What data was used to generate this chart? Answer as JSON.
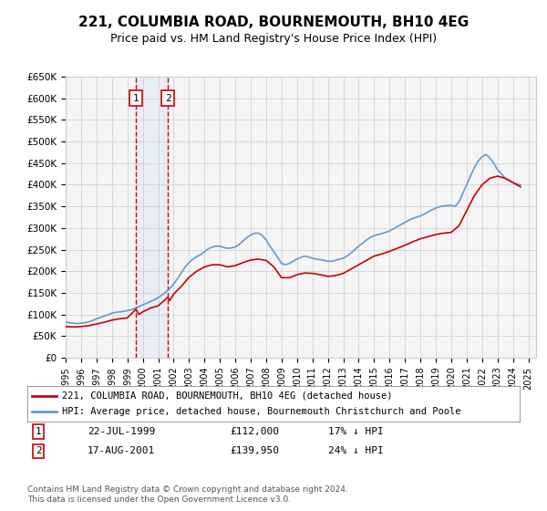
{
  "title": "221, COLUMBIA ROAD, BOURNEMOUTH, BH10 4EG",
  "subtitle": "Price paid vs. HM Land Registry's House Price Index (HPI)",
  "title_fontsize": 11,
  "subtitle_fontsize": 9,
  "ylabel": "",
  "xlabel": "",
  "ylim": [
    0,
    650000
  ],
  "yticks": [
    0,
    50000,
    100000,
    150000,
    200000,
    250000,
    300000,
    350000,
    400000,
    450000,
    500000,
    550000,
    600000,
    650000
  ],
  "ytick_labels": [
    "£0",
    "£50K",
    "£100K",
    "£150K",
    "£200K",
    "£250K",
    "£300K",
    "£350K",
    "£400K",
    "£450K",
    "£500K",
    "£550K",
    "£600K",
    "£650K"
  ],
  "background_color": "#ffffff",
  "plot_bg_color": "#f5f5f5",
  "grid_color": "#cccccc",
  "hpi_color": "#6699cc",
  "price_color": "#cc0000",
  "transaction1": {
    "date_num": 1999.55,
    "price": 112000,
    "label": "1",
    "date_str": "22-JUL-1999",
    "price_str": "£112,000",
    "pct": "17% ↓ HPI"
  },
  "transaction2": {
    "date_num": 2001.63,
    "price": 139950,
    "label": "2",
    "date_str": "17-AUG-2001",
    "price_str": "£139,950",
    "pct": "24% ↓ HPI"
  },
  "legend_line1": "221, COLUMBIA ROAD, BOURNEMOUTH, BH10 4EG (detached house)",
  "legend_line2": "HPI: Average price, detached house, Bournemouth Christchurch and Poole",
  "footer": "Contains HM Land Registry data © Crown copyright and database right 2024.\nThis data is licensed under the Open Government Licence v3.0.",
  "hpi_data": {
    "years": [
      1995.0,
      1995.25,
      1995.5,
      1995.75,
      1996.0,
      1996.25,
      1996.5,
      1996.75,
      1997.0,
      1997.25,
      1997.5,
      1997.75,
      1998.0,
      1998.25,
      1998.5,
      1998.75,
      1999.0,
      1999.25,
      1999.5,
      1999.75,
      2000.0,
      2000.25,
      2000.5,
      2000.75,
      2001.0,
      2001.25,
      2001.5,
      2001.75,
      2002.0,
      2002.25,
      2002.5,
      2002.75,
      2003.0,
      2003.25,
      2003.5,
      2003.75,
      2004.0,
      2004.25,
      2004.5,
      2004.75,
      2005.0,
      2005.25,
      2005.5,
      2005.75,
      2006.0,
      2006.25,
      2006.5,
      2006.75,
      2007.0,
      2007.25,
      2007.5,
      2007.75,
      2008.0,
      2008.25,
      2008.5,
      2008.75,
      2009.0,
      2009.25,
      2009.5,
      2009.75,
      2010.0,
      2010.25,
      2010.5,
      2010.75,
      2011.0,
      2011.25,
      2011.5,
      2011.75,
      2012.0,
      2012.25,
      2012.5,
      2012.75,
      2013.0,
      2013.25,
      2013.5,
      2013.75,
      2014.0,
      2014.25,
      2014.5,
      2014.75,
      2015.0,
      2015.25,
      2015.5,
      2015.75,
      2016.0,
      2016.25,
      2016.5,
      2016.75,
      2017.0,
      2017.25,
      2017.5,
      2017.75,
      2018.0,
      2018.25,
      2018.5,
      2018.75,
      2019.0,
      2019.25,
      2019.5,
      2019.75,
      2020.0,
      2020.25,
      2020.5,
      2020.75,
      2021.0,
      2021.25,
      2021.5,
      2021.75,
      2022.0,
      2022.25,
      2022.5,
      2022.75,
      2023.0,
      2023.25,
      2023.5,
      2023.75,
      2024.0,
      2024.25,
      2024.5
    ],
    "values": [
      82000,
      81000,
      80000,
      79000,
      80000,
      81000,
      83000,
      86000,
      90000,
      93000,
      96000,
      99000,
      103000,
      105000,
      106000,
      107000,
      109000,
      111000,
      114000,
      118000,
      122000,
      126000,
      130000,
      134000,
      139000,
      145000,
      152000,
      160000,
      170000,
      183000,
      196000,
      210000,
      220000,
      228000,
      234000,
      238000,
      245000,
      252000,
      256000,
      258000,
      258000,
      255000,
      253000,
      254000,
      256000,
      262000,
      270000,
      278000,
      284000,
      288000,
      288000,
      283000,
      272000,
      258000,
      245000,
      232000,
      218000,
      215000,
      218000,
      223000,
      228000,
      232000,
      235000,
      233000,
      230000,
      228000,
      227000,
      225000,
      223000,
      223000,
      225000,
      228000,
      230000,
      235000,
      242000,
      250000,
      258000,
      265000,
      272000,
      278000,
      282000,
      285000,
      287000,
      290000,
      293000,
      298000,
      303000,
      308000,
      313000,
      318000,
      322000,
      325000,
      328000,
      332000,
      337000,
      342000,
      346000,
      349000,
      351000,
      352000,
      352000,
      350000,
      360000,
      380000,
      400000,
      420000,
      440000,
      455000,
      465000,
      470000,
      462000,
      450000,
      435000,
      425000,
      415000,
      410000,
      405000,
      402000,
      400000
    ]
  },
  "price_data": {
    "years": [
      1995.0,
      1995.5,
      1996.0,
      1996.5,
      1997.0,
      1997.5,
      1998.0,
      1998.5,
      1999.0,
      1999.55,
      1999.75,
      2000.0,
      2000.5,
      2001.0,
      2001.63,
      2001.75,
      2002.0,
      2002.5,
      2003.0,
      2003.5,
      2004.0,
      2004.5,
      2005.0,
      2005.5,
      2006.0,
      2006.5,
      2007.0,
      2007.5,
      2008.0,
      2008.5,
      2009.0,
      2009.5,
      2010.0,
      2010.5,
      2011.0,
      2011.5,
      2012.0,
      2012.5,
      2013.0,
      2013.5,
      2014.0,
      2014.5,
      2015.0,
      2015.5,
      2016.0,
      2016.5,
      2017.0,
      2017.5,
      2018.0,
      2018.5,
      2019.0,
      2019.5,
      2020.0,
      2020.5,
      2021.0,
      2021.5,
      2022.0,
      2022.5,
      2023.0,
      2023.5,
      2024.0,
      2024.5
    ],
    "values": [
      72000,
      71000,
      72000,
      74000,
      78000,
      82000,
      87000,
      90000,
      92000,
      112000,
      100000,
      106000,
      115000,
      120000,
      139950,
      132000,
      147000,
      165000,
      186000,
      200000,
      210000,
      215000,
      215000,
      210000,
      213000,
      220000,
      226000,
      228000,
      225000,
      210000,
      185000,
      185000,
      192000,
      196000,
      195000,
      192000,
      188000,
      190000,
      195000,
      205000,
      215000,
      225000,
      235000,
      240000,
      246000,
      253000,
      260000,
      268000,
      275000,
      280000,
      285000,
      288000,
      290000,
      305000,
      340000,
      375000,
      400000,
      415000,
      420000,
      415000,
      405000,
      395000
    ]
  },
  "xmin": 1995.0,
  "xmax": 2025.5,
  "xticks": [
    1995,
    1996,
    1997,
    1998,
    1999,
    2000,
    2001,
    2002,
    2003,
    2004,
    2005,
    2006,
    2007,
    2008,
    2009,
    2010,
    2011,
    2012,
    2013,
    2014,
    2015,
    2016,
    2017,
    2018,
    2019,
    2020,
    2021,
    2022,
    2023,
    2024,
    2025
  ]
}
